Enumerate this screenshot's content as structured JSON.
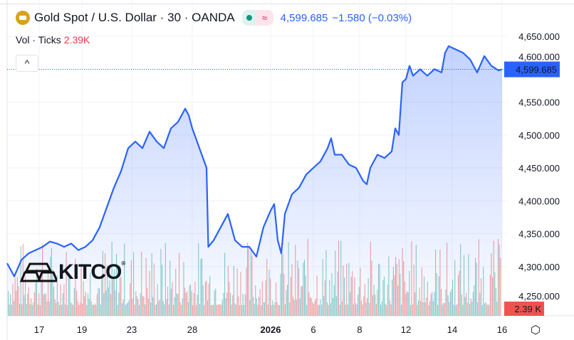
{
  "header": {
    "symbol": "Gold Spot / U.S. Dollar",
    "interval": "30",
    "exchange": "OANDA",
    "sep": "·",
    "price": "4,599.685",
    "change": "−1.580 (−0.03%)",
    "status_symbol": "≈"
  },
  "volume": {
    "label": "Vol · Ticks",
    "value": "2.39K",
    "badge": "2.39 K"
  },
  "collapse": "^",
  "watermark": "KITCO",
  "watermark_mark": "®",
  "settings_icon": "⬡",
  "colors": {
    "line": "#2962ff",
    "up": "#26a69a",
    "down": "#ef5350",
    "badge": "#2962ff"
  },
  "chart_data": {
    "type": "area",
    "title": "Gold Spot / U.S. Dollar · 30 · OANDA",
    "ylim": [
      4230,
      4660
    ],
    "yticks": [
      "4,650.000",
      "4,600.000",
      "4,550.000",
      "4,500.000",
      "4,450.000",
      "4,400.000",
      "4,350.000",
      "4,300.000",
      "4,250.000"
    ],
    "ytick_values": [
      4650,
      4600,
      4550,
      4500,
      4450,
      4400,
      4350,
      4300,
      4250
    ],
    "xticks": [
      {
        "label": "17",
        "i": 9
      },
      {
        "label": "19",
        "i": 21
      },
      {
        "label": "23",
        "i": 35
      },
      {
        "label": "28",
        "i": 52
      },
      {
        "label": "2026",
        "i": 74,
        "bold": true
      },
      {
        "label": "6",
        "i": 86
      },
      {
        "label": "8",
        "i": 99
      },
      {
        "label": "12",
        "i": 112
      },
      {
        "label": "14",
        "i": 125
      },
      {
        "label": "16",
        "i": 139
      }
    ],
    "last_price": "4,599.685",
    "last_value": 4599.685,
    "points": [
      [
        0,
        4305
      ],
      [
        2,
        4285
      ],
      [
        4,
        4310
      ],
      [
        6,
        4320
      ],
      [
        8,
        4325
      ],
      [
        10,
        4330
      ],
      [
        12,
        4338
      ],
      [
        14,
        4335
      ],
      [
        16,
        4330
      ],
      [
        18,
        4335
      ],
      [
        20,
        4325
      ],
      [
        22,
        4330
      ],
      [
        24,
        4340
      ],
      [
        26,
        4360
      ],
      [
        28,
        4390
      ],
      [
        30,
        4420
      ],
      [
        32,
        4445
      ],
      [
        34,
        4480
      ],
      [
        36,
        4490
      ],
      [
        38,
        4480
      ],
      [
        40,
        4505
      ],
      [
        42,
        4490
      ],
      [
        44,
        4480
      ],
      [
        46,
        4510
      ],
      [
        48,
        4520
      ],
      [
        50,
        4540
      ],
      [
        51,
        4530
      ],
      [
        52,
        4510
      ],
      [
        54,
        4480
      ],
      [
        56,
        4450
      ],
      [
        56.5,
        4330
      ],
      [
        58,
        4340
      ],
      [
        60,
        4360
      ],
      [
        62,
        4380
      ],
      [
        64,
        4340
      ],
      [
        66,
        4330
      ],
      [
        68,
        4330
      ],
      [
        70,
        4315
      ],
      [
        72,
        4360
      ],
      [
        74,
        4385
      ],
      [
        75,
        4395
      ],
      [
        76,
        4340
      ],
      [
        77,
        4320
      ],
      [
        78,
        4380
      ],
      [
        80,
        4410
      ],
      [
        82,
        4420
      ],
      [
        84,
        4440
      ],
      [
        86,
        4450
      ],
      [
        88,
        4460
      ],
      [
        90,
        4480
      ],
      [
        91,
        4495
      ],
      [
        92,
        4470
      ],
      [
        94,
        4470
      ],
      [
        96,
        4455
      ],
      [
        98,
        4450
      ],
      [
        100,
        4430
      ],
      [
        101,
        4425
      ],
      [
        102,
        4450
      ],
      [
        104,
        4470
      ],
      [
        106,
        4465
      ],
      [
        108,
        4475
      ],
      [
        109,
        4510
      ],
      [
        110,
        4500
      ],
      [
        111,
        4580
      ],
      [
        112,
        4585
      ],
      [
        113,
        4605
      ],
      [
        114,
        4590
      ],
      [
        116,
        4600
      ],
      [
        118,
        4590
      ],
      [
        120,
        4600
      ],
      [
        122,
        4595
      ],
      [
        123,
        4625
      ],
      [
        124,
        4635
      ],
      [
        126,
        4630
      ],
      [
        128,
        4625
      ],
      [
        130,
        4615
      ],
      [
        132,
        4595
      ],
      [
        134,
        4620
      ],
      [
        136,
        4605
      ],
      [
        138,
        4598
      ],
      [
        139,
        4599.685
      ]
    ]
  }
}
